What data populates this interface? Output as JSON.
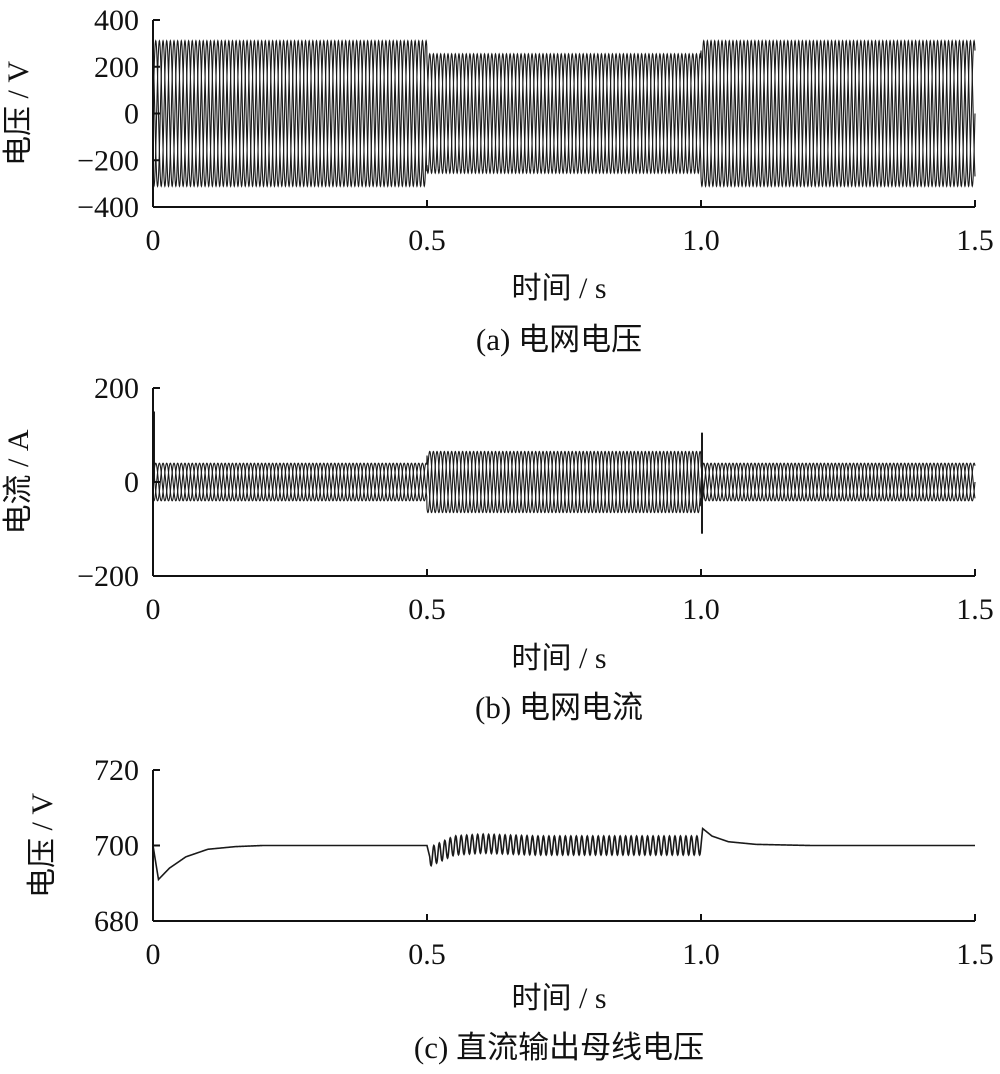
{
  "chart_data": [
    {
      "id": "a",
      "type": "line",
      "caption": "(a) 电网电压",
      "xlabel": "时间 / s",
      "ylabel": "电压 / V",
      "xlim": [
        0,
        1.5
      ],
      "ylim": [
        -400,
        400
      ],
      "x_ticks": [
        "0",
        "0.5",
        "1.0",
        "1.5"
      ],
      "y_ticks": [
        "400",
        "200",
        "0",
        "−200",
        "−400"
      ],
      "grid": false,
      "phases": 3,
      "frequency_hz": 50,
      "series": [
        {
          "x": [
            0,
            0.5,
            0.5,
            1.0,
            1.0,
            1.5
          ],
          "amplitude": [
            311,
            311,
            255,
            255,
            311,
            311
          ]
        }
      ]
    },
    {
      "id": "b",
      "type": "line",
      "caption": "(b) 电网电流",
      "xlabel": "时间 / s",
      "ylabel": "电流 / A",
      "xlim": [
        0,
        1.5
      ],
      "ylim": [
        -200,
        200
      ],
      "x_ticks": [
        "0",
        "0.5",
        "1.0",
        "1.5"
      ],
      "y_ticks": [
        "200",
        "0",
        "−200"
      ],
      "grid": false,
      "phases": 3,
      "frequency_hz": 50,
      "series": [
        {
          "x": [
            0,
            0.5,
            0.5,
            1.0,
            1.0,
            1.5
          ],
          "amplitude": [
            40,
            40,
            65,
            65,
            40,
            40
          ]
        }
      ],
      "transients": [
        {
          "x": 0.0,
          "y": 150
        },
        {
          "x": 1.0,
          "y": 105
        },
        {
          "x": 1.0,
          "y": -110
        }
      ]
    },
    {
      "id": "c",
      "type": "line",
      "caption": "(c) 直流输出母线电压",
      "xlabel": "时间 / s",
      "ylabel": "电压 / V",
      "xlim": [
        0,
        1.5
      ],
      "ylim": [
        680,
        720
      ],
      "x_ticks": [
        "0",
        "0.5",
        "1.0",
        "1.5"
      ],
      "y_ticks": [
        "720",
        "700",
        "680"
      ],
      "grid": false,
      "series": [
        {
          "x": [
            0,
            0.01,
            0.03,
            0.06,
            0.1,
            0.15,
            0.2,
            0.5,
            0.505,
            0.52,
            0.55,
            0.6,
            0.7,
            0.8,
            0.9,
            0.99,
            1.0,
            1.003,
            1.02,
            1.05,
            1.1,
            1.2,
            1.5
          ],
          "y": [
            700,
            691,
            694,
            697,
            699,
            699.7,
            700,
            700,
            697,
            698,
            700,
            700.5,
            700,
            700,
            700,
            700,
            700,
            704.5,
            702.5,
            701,
            700.3,
            700,
            700
          ],
          "ripple_x": [
            0.5,
            1.0
          ],
          "ripple_amplitude": 2.5,
          "ripple_frequency_hz": 100
        }
      ]
    }
  ]
}
